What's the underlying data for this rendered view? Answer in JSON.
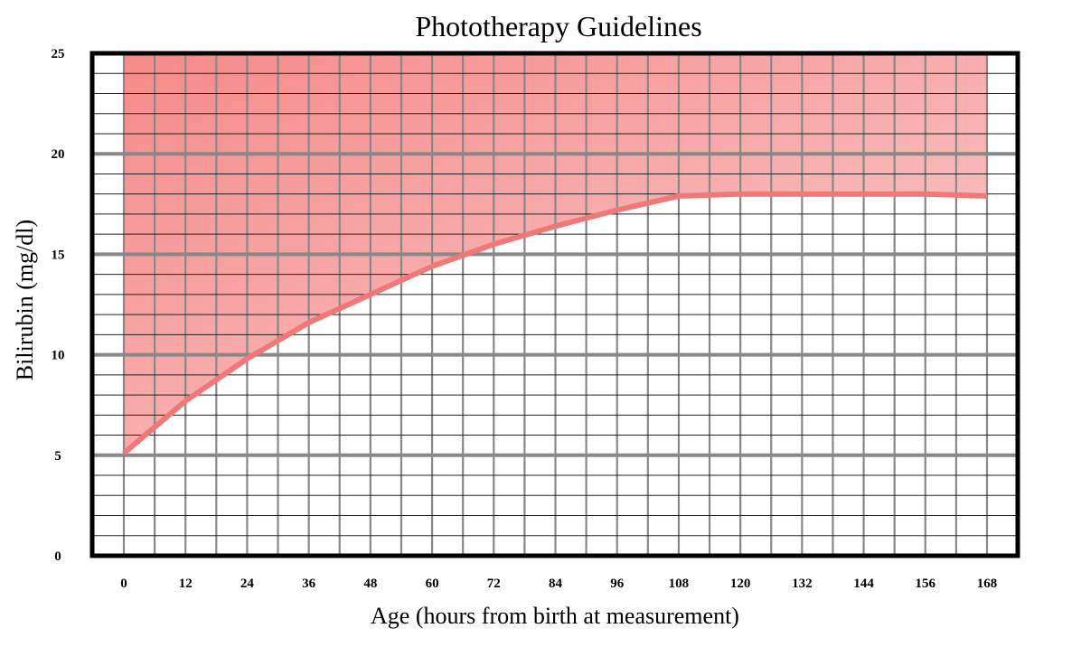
{
  "chart_data": {
    "type": "line",
    "title": "Phototherapy Guidelines",
    "xlabel": "Age (hours from birth at measurement)",
    "ylabel": "Bilirubin (mg/dl)",
    "x_ticks": [
      0,
      12,
      24,
      36,
      48,
      60,
      72,
      84,
      96,
      108,
      120,
      132,
      144,
      156,
      168
    ],
    "y_ticks": [
      0,
      5,
      10,
      15,
      20,
      25
    ],
    "xlim": [
      0,
      168
    ],
    "ylim": [
      0,
      25
    ],
    "grid": true,
    "shaded_region": "above threshold line",
    "colors": {
      "line": "#f07878",
      "fill_dark": "#f68a8a",
      "fill_light": "#fad0d0",
      "grid": "#888888",
      "minor_grid": "#222222"
    },
    "series": [
      {
        "x": [
          0,
          12,
          24,
          36,
          48,
          60,
          72,
          84,
          96,
          108,
          120,
          132,
          144,
          156,
          168
        ],
        "y": [
          5.1,
          7.7,
          9.8,
          11.6,
          13.0,
          14.4,
          15.5,
          16.4,
          17.2,
          17.9,
          18.0,
          18.0,
          18.0,
          18.0,
          17.9
        ]
      }
    ]
  }
}
